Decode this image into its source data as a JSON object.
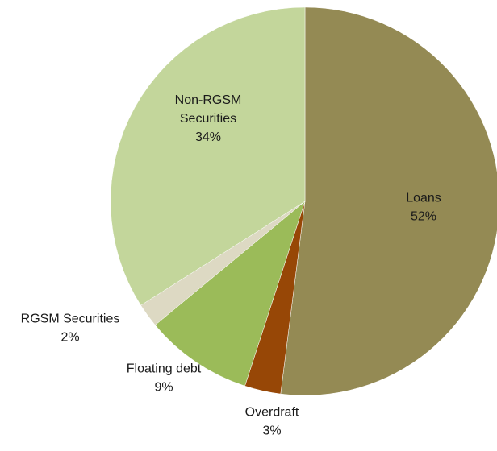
{
  "chart_data": {
    "type": "pie",
    "title": "",
    "slices": [
      {
        "label": "Loans",
        "value_label": "52%",
        "value": 52,
        "color": "#948a54"
      },
      {
        "label": "Overdraft",
        "value_label": "3%",
        "value": 3,
        "color": "#974706"
      },
      {
        "label": "Floating debt",
        "value_label": "9%",
        "value": 9,
        "color": "#9bbb59"
      },
      {
        "label": "RGSM Securities",
        "value_label": "2%",
        "value": 2,
        "color": "#ddd9c3"
      },
      {
        "label": "Non-RGSM Securities",
        "value_label": "34%",
        "value": 34,
        "color": "#c3d69b"
      }
    ],
    "legend": "none",
    "start_angle": "12 o'clock",
    "direction": "clockwise"
  }
}
